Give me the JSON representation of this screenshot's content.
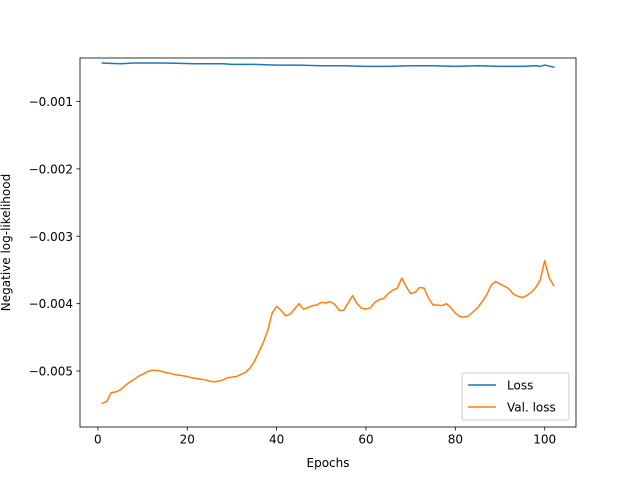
{
  "chart_data": {
    "type": "line",
    "xlabel": "Epochs",
    "ylabel": "Negative log-likelihood",
    "xlim": [
      -4,
      107
    ],
    "ylim": [
      -0.00583,
      -0.000355
    ],
    "xticks": [
      0,
      20,
      40,
      60,
      80,
      100
    ],
    "yticks": [
      -0.005,
      -0.004,
      -0.003,
      -0.002,
      -0.001
    ],
    "xtick_labels": [
      "0",
      "20",
      "40",
      "60",
      "80",
      "100"
    ],
    "ytick_labels": [
      "−0.005",
      "−0.004",
      "−0.003",
      "−0.002",
      "−0.001"
    ],
    "grid": false,
    "legend_position": "lower-right",
    "series": [
      {
        "name": "Loss",
        "color": "#1f77b4",
        "x": [
          1,
          5,
          8,
          15,
          22,
          28,
          30,
          35,
          40,
          45,
          50,
          55,
          60,
          65,
          70,
          75,
          80,
          85,
          90,
          95,
          98,
          99,
          100,
          102
        ],
        "y": [
          -0.00043,
          -0.00044,
          -0.00043,
          -0.00043,
          -0.00044,
          -0.00044,
          -0.00045,
          -0.00045,
          -0.00046,
          -0.00046,
          -0.00047,
          -0.00047,
          -0.00048,
          -0.00048,
          -0.00047,
          -0.00047,
          -0.00048,
          -0.00047,
          -0.00048,
          -0.00048,
          -0.00047,
          -0.00048,
          -0.00046,
          -0.00049
        ]
      },
      {
        "name": "Val. loss",
        "color": "#ff7f0e",
        "x": [
          1,
          2,
          3,
          4,
          5,
          6,
          7,
          8,
          9,
          10,
          11,
          12,
          13,
          14,
          15,
          16,
          17,
          18,
          19,
          20,
          21,
          22,
          23,
          24,
          25,
          26,
          27,
          28,
          29,
          30,
          31,
          32,
          33,
          34,
          35,
          36,
          37,
          38,
          39,
          40,
          41,
          42,
          43,
          44,
          45,
          46,
          47,
          48,
          49,
          50,
          51,
          52,
          53,
          54,
          55,
          56,
          57,
          58,
          59,
          60,
          61,
          62,
          63,
          64,
          65,
          66,
          67,
          68,
          69,
          70,
          71,
          72,
          73,
          74,
          75,
          76,
          77,
          78,
          79,
          80,
          81,
          82,
          83,
          84,
          85,
          86,
          87,
          88,
          89,
          90,
          91,
          92,
          93,
          94,
          95,
          96,
          97,
          98,
          99,
          100,
          101,
          102
        ],
        "y": [
          -0.00548,
          -0.00545,
          -0.00532,
          -0.00531,
          -0.00528,
          -0.00522,
          -0.00517,
          -0.00513,
          -0.00508,
          -0.00505,
          -0.00501,
          -0.00499,
          -0.00499,
          -0.005,
          -0.00502,
          -0.00503,
          -0.00505,
          -0.00506,
          -0.00507,
          -0.00508,
          -0.0051,
          -0.00511,
          -0.00512,
          -0.00513,
          -0.00515,
          -0.00516,
          -0.00515,
          -0.00513,
          -0.0051,
          -0.00509,
          -0.00508,
          -0.00505,
          -0.00502,
          -0.00496,
          -0.00486,
          -0.00472,
          -0.00458,
          -0.0044,
          -0.00414,
          -0.00404,
          -0.0041,
          -0.00418,
          -0.00416,
          -0.00408,
          -0.004,
          -0.00408,
          -0.00406,
          -0.00403,
          -0.00402,
          -0.00398,
          -0.00399,
          -0.00397,
          -0.00401,
          -0.0041,
          -0.0041,
          -0.00399,
          -0.00388,
          -0.004,
          -0.00407,
          -0.00408,
          -0.00406,
          -0.00398,
          -0.00394,
          -0.00392,
          -0.00385,
          -0.0038,
          -0.00377,
          -0.00362,
          -0.00375,
          -0.00385,
          -0.00383,
          -0.00376,
          -0.00377,
          -0.00392,
          -0.00402,
          -0.00402,
          -0.00403,
          -0.004,
          -0.00406,
          -0.00414,
          -0.00419,
          -0.0042,
          -0.00418,
          -0.00412,
          -0.00406,
          -0.00397,
          -0.00387,
          -0.00373,
          -0.00367,
          -0.00371,
          -0.00374,
          -0.00378,
          -0.00386,
          -0.00389,
          -0.00391,
          -0.00388,
          -0.00383,
          -0.00376,
          -0.00365,
          -0.00336,
          -0.00362,
          -0.00373
        ]
      }
    ]
  }
}
